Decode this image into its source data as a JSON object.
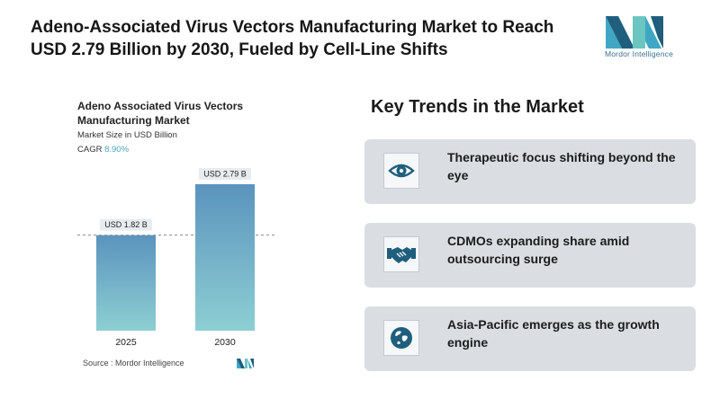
{
  "headline": "Adeno-Associated Virus Vectors Manufacturing Market to Reach USD 2.79 Billion by 2030, Fueled by Cell-Line Shifts",
  "brand": {
    "name": "Mordor Intelligence",
    "colors": [
      "#1f5e7d",
      "#3fa7c4",
      "#6bc6c2"
    ]
  },
  "chart_data": {
    "type": "bar",
    "title": "Adeno Associated Virus Vectors Manufacturing Market",
    "subtitle": "Market Size in USD Billion",
    "cagr_label": "CAGR",
    "cagr_value": "8.90%",
    "categories": [
      "2025",
      "2030"
    ],
    "values": [
      1.82,
      2.79
    ],
    "data_labels": [
      "USD 1.82 B",
      "USD 2.79 B"
    ],
    "ylim": [
      0,
      2.79
    ],
    "grid": false,
    "reference_line": "dashed line at 2025 value",
    "bar_gradient": [
      "#5b93bd",
      "#8dcfd3"
    ]
  },
  "source": "Source :  Mordor Intelligence",
  "trends": {
    "title": "Key Trends in the Market",
    "items": [
      {
        "icon": "eye-icon",
        "text": "Therapeutic focus shifting beyond the eye"
      },
      {
        "icon": "handshake-icon",
        "text": "CDMOs expanding share amid outsourcing surge"
      },
      {
        "icon": "globe-icon",
        "text": "Asia-Pacific emerges as the growth engine"
      }
    ],
    "icon_color": "#1f5e7d"
  }
}
